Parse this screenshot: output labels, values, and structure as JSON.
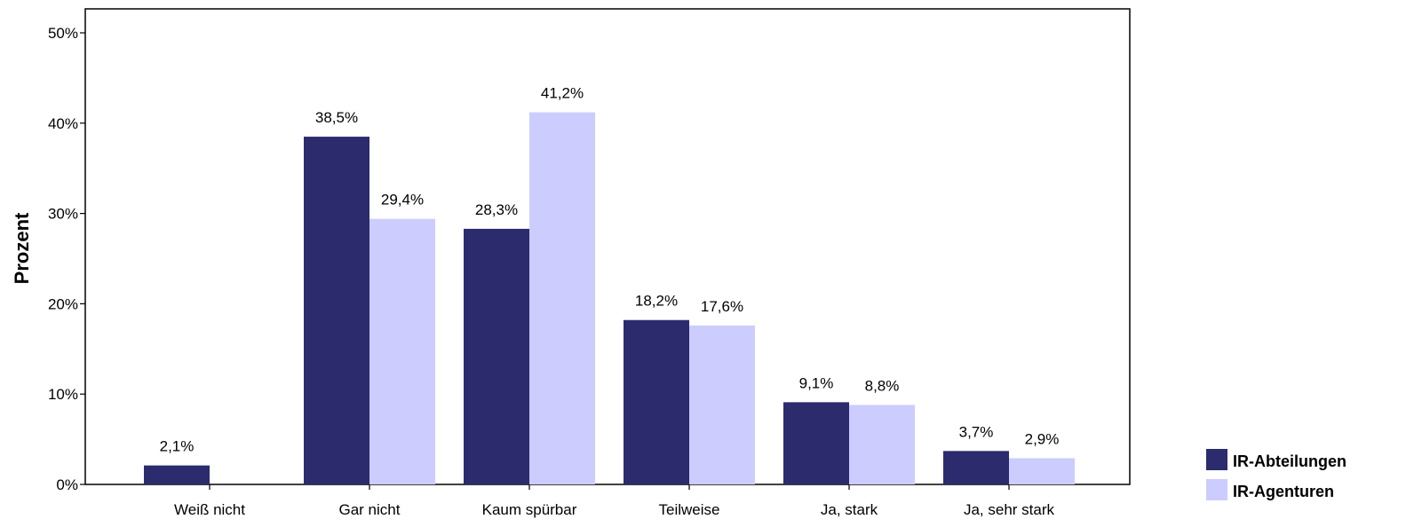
{
  "chart_data": {
    "type": "bar",
    "title": "",
    "xlabel": "",
    "ylabel": "Prozent",
    "ylim": [
      0,
      50
    ],
    "yticks": [
      "0%",
      "10%",
      "20%",
      "30%",
      "40%",
      "50%"
    ],
    "categories": [
      "Weiß nicht",
      "Gar nicht",
      "Kaum spürbar",
      "Teilweise",
      "Ja, stark",
      "Ja, sehr stark"
    ],
    "series": [
      {
        "name": "IR-Abteilungen",
        "color": "#2b2b6e",
        "values": [
          2.1,
          38.5,
          28.3,
          18.2,
          9.1,
          3.7
        ],
        "labels": [
          "2,1%",
          "38,5%",
          "28,3%",
          "18,2%",
          "9,1%",
          "3,7%"
        ]
      },
      {
        "name": "IR-Agenturen",
        "color": "#ccccff",
        "values": [
          null,
          29.4,
          41.2,
          17.6,
          8.8,
          2.9
        ],
        "labels": [
          "",
          "29,4%",
          "41,2%",
          "17,6%",
          "8,8%",
          "2,9%"
        ]
      }
    ],
    "grid": false,
    "legend_position": "bottom-right"
  }
}
